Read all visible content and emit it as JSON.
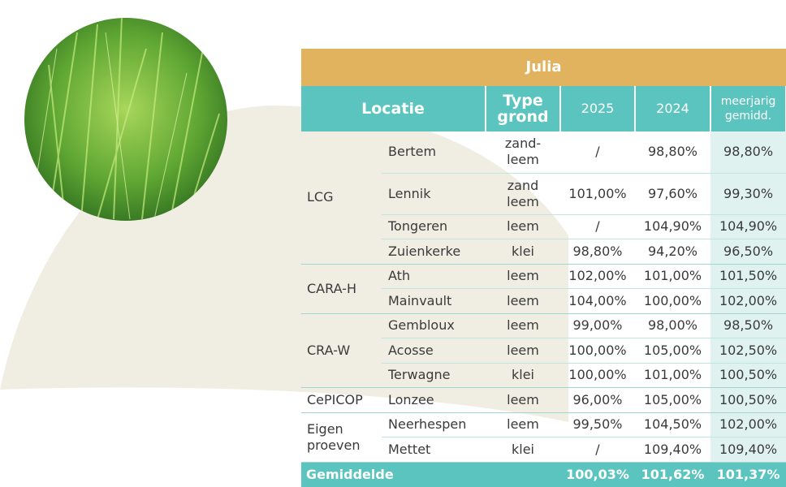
{
  "table": {
    "title": "Julia",
    "columns": [
      "Locatie",
      "Type\ngrond",
      "2025",
      "2024",
      "meerjarig\ngemidd."
    ],
    "groups": [
      {
        "name": "LCG",
        "rows": [
          [
            "Bertem",
            "zand-\nleem",
            "/",
            "98,80%",
            "98,80%"
          ],
          [
            "Lennik",
            "zand\nleem",
            "101,00%",
            "97,60%",
            "99,30%"
          ],
          [
            "Tongeren",
            "leem",
            "/",
            "104,90%",
            "104,90%"
          ],
          [
            "Zuienkerke",
            "klei",
            "98,80%",
            "94,20%",
            "96,50%"
          ]
        ]
      },
      {
        "name": "CARA-H",
        "rows": [
          [
            "Ath",
            "leem",
            "102,00%",
            "101,00%",
            "101,50%"
          ],
          [
            "Mainvault",
            "leem",
            "104,00%",
            "100,00%",
            "102,00%"
          ]
        ]
      },
      {
        "name": "CRA-W",
        "rows": [
          [
            "Gembloux",
            "leem",
            "99,00%",
            "98,00%",
            "98,50%"
          ],
          [
            "Acosse",
            "leem",
            "100,00%",
            "105,00%",
            "102,50%"
          ],
          [
            "Terwagne",
            "klei",
            "100,00%",
            "101,00%",
            "100,50%"
          ]
        ]
      },
      {
        "name": "CePICOP",
        "rows": [
          [
            "Lonzee",
            "leem",
            "96,00%",
            "105,00%",
            "100,50%"
          ]
        ]
      },
      {
        "name": "Eigen\nproeven",
        "rows": [
          [
            "Neerhespen",
            "leem",
            "99,50%",
            "104,50%",
            "102,00%"
          ],
          [
            "Mettet",
            "klei",
            "/",
            "109,40%",
            "109,40%"
          ]
        ]
      }
    ],
    "footer": [
      "Gemiddelde",
      "100,03%",
      "101,62%",
      "101,37%"
    ]
  }
}
